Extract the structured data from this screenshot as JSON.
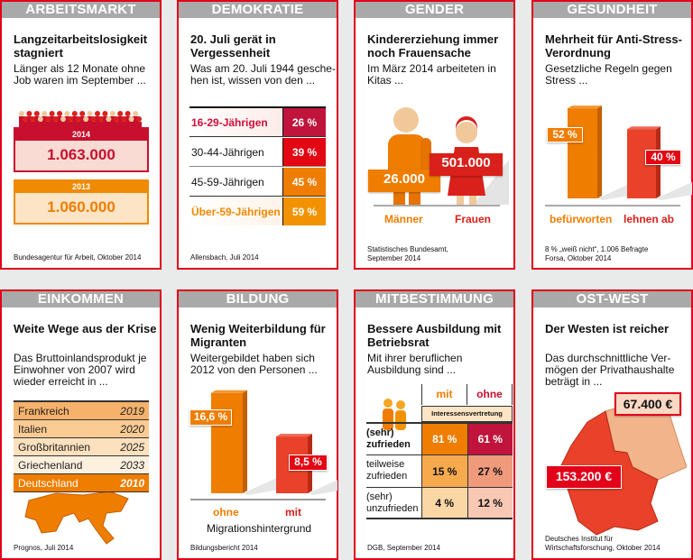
{
  "colors": {
    "accent": "#e2001a",
    "orange": "#ef7d00",
    "dark_red": "#c0143c",
    "header_gray": "#a9a9a9"
  },
  "cards": {
    "arbeitsmarkt": {
      "header": "ARBEITSMARKT",
      "title": "Langzeitarbeitslosigkeit stagniert",
      "subtitle": "Länger als 12 Monate ohne Job waren im September ...",
      "y2014": {
        "year": "2014",
        "value": "1.063.000"
      },
      "y2013": {
        "year": "2013",
        "value": "1.060.000"
      },
      "source": "Bundesagentur für Arbeit, Oktober 2014"
    },
    "demokratie": {
      "header": "DEMOKRATIE",
      "title": "20. Juli gerät in Vergessenheit",
      "subtitle": "Was am 20. Juli 1944 gesche-hen ist, wissen von den ...",
      "rows": [
        {
          "label": "16-29-Jährigen",
          "value": "26 %"
        },
        {
          "label": "30-44-Jährigen",
          "value": "39 %"
        },
        {
          "label": "45-59-Jährigen",
          "value": "45 %"
        },
        {
          "label": "Über-59-Jährigen",
          "value": "59 %"
        }
      ],
      "source": "Allensbach, Juli 2014"
    },
    "gender": {
      "header": "GENDER",
      "title": "Kindererziehung immer noch Frauensache",
      "subtitle": "Im März 2014 arbeiteten in Kitas ...",
      "men": {
        "label": "Männer",
        "value": "26.000"
      },
      "women": {
        "label": "Frauen",
        "value": "501.000"
      },
      "source": "Statistisches Bundesamt, September 2014"
    },
    "gesundheit": {
      "header": "GESUNDHEIT",
      "title": "Mehrheit für Anti-Stress-Verordnung",
      "subtitle": "Gesetzliche Regeln gegen Stress ...",
      "bars": [
        {
          "label": "befürworten",
          "value": "52 %",
          "pct": 52
        },
        {
          "label": "lehnen ab",
          "value": "40 %",
          "pct": 40
        }
      ],
      "note": "8 % „weiß nicht“, 1.006 Befragte",
      "source": "Forsa, Oktober 2014"
    },
    "einkommen": {
      "header": "EINKOMMEN",
      "title": "Weite Wege aus der Krise",
      "subtitle": "Das Bruttoinlandsprodukt je Einwohner von 2007 wird wieder erreicht in ...",
      "rows": [
        {
          "country": "Frankreich",
          "year": "2019"
        },
        {
          "country": "Italien",
          "year": "2020"
        },
        {
          "country": "Großbritannien",
          "year": "2025"
        },
        {
          "country": "Griechenland",
          "year": "2033"
        },
        {
          "country": "Deutschland",
          "year": "2010"
        }
      ],
      "source": "Prognos, Juli 2014"
    },
    "bildung": {
      "header": "BILDUNG",
      "title": "Wenig Weiterbildung für Migranten",
      "subtitle": "Weitergebildet haben sich 2012 von den Personen ...",
      "bars": [
        {
          "label": "ohne",
          "value": "16,6 %",
          "pct": 16.6
        },
        {
          "label": "mit",
          "value": "8,5 %",
          "pct": 8.5
        }
      ],
      "axis_label": "Migrationshintergrund",
      "source": "Bildungsbericht 2014"
    },
    "mitbestimmung": {
      "header": "MITBESTIMMUNG",
      "title": "Bessere Ausbildung mit Betriebsrat",
      "subtitle": "Mit ihrer beruflichen Ausbildung sind ...",
      "col_mit": "mit",
      "col_ohne": "ohne",
      "col_group": "Interessensvertretung",
      "rows": [
        {
          "label1": "(sehr)",
          "label2": "zufrieden",
          "mit": "81 %",
          "ohne": "61 %"
        },
        {
          "label1": "teilweise",
          "label2": "zufrieden",
          "mit": "15 %",
          "ohne": "27 %"
        },
        {
          "label1": "(sehr)",
          "label2": "unzufrieden",
          "mit": "4 %",
          "ohne": "12 %"
        }
      ],
      "source": "DGB, September 2014"
    },
    "ostwest": {
      "header": "OST-WEST",
      "title": "Der Westen ist reicher",
      "subtitle": "Das durchschnittliche Ver-mögen der Privathaushalte beträgt in ...",
      "east": "67.400 €",
      "west": "153.200 €",
      "source1": "Deutsches Institut für",
      "source2": "Wirtschaftsforschung, Oktober 2014"
    }
  }
}
